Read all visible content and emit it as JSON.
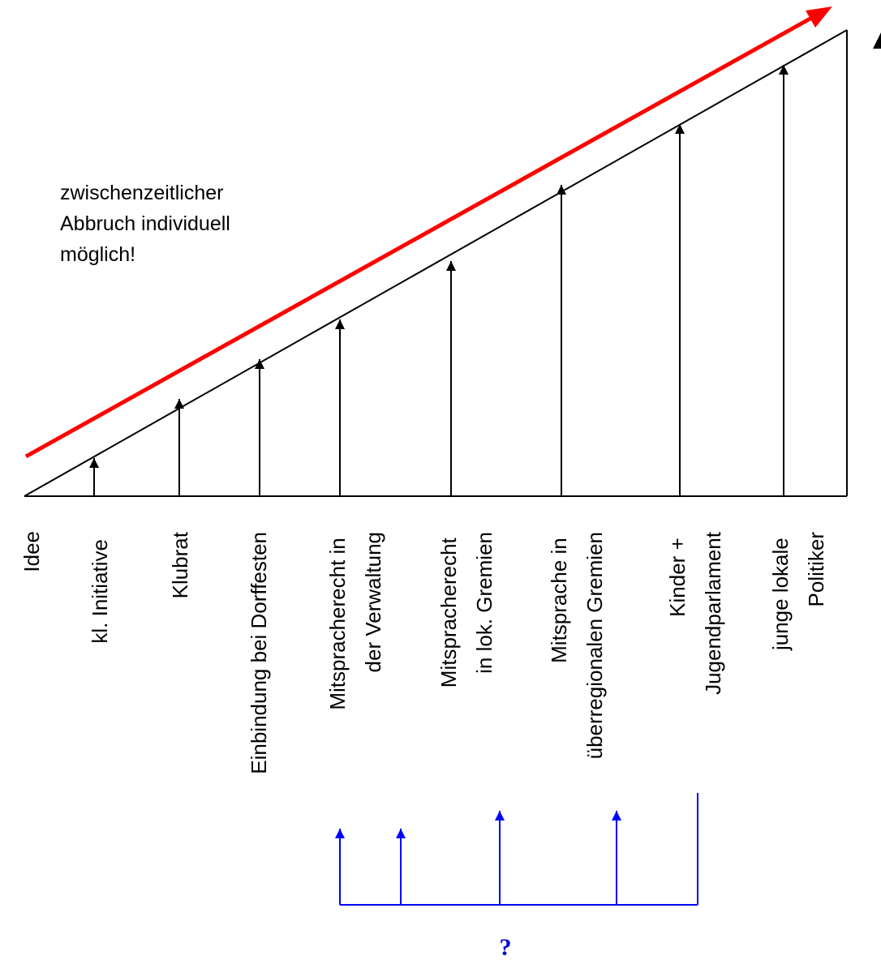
{
  "note": {
    "lines": [
      "zwischenzeitlicher",
      "Abbruch individuell",
      "möglich!"
    ]
  },
  "stages": [
    {
      "lines": [
        "Idee"
      ]
    },
    {
      "lines": [
        "kl. Initiative"
      ]
    },
    {
      "lines": [
        "Klubrat"
      ]
    },
    {
      "lines": [
        "Einbindung bei Dorffesten"
      ]
    },
    {
      "lines": [
        "Mitspracherecht in",
        "der Verwaltung"
      ]
    },
    {
      "lines": [
        "Mitspracherecht",
        "in lok. Gremien"
      ]
    },
    {
      "lines": [
        "Mitsprache in",
        "überregionalen Gremien"
      ]
    },
    {
      "lines": [
        "Kinder +",
        "Jugendparlament"
      ]
    },
    {
      "lines": [
        "junge lokale",
        "Politiker"
      ]
    }
  ],
  "question_mark": "?",
  "colors": {
    "trend_arrow": "#ff0000",
    "feedback": "#0000ff",
    "question_mark": "#0000cc",
    "lines": "#000000"
  }
}
